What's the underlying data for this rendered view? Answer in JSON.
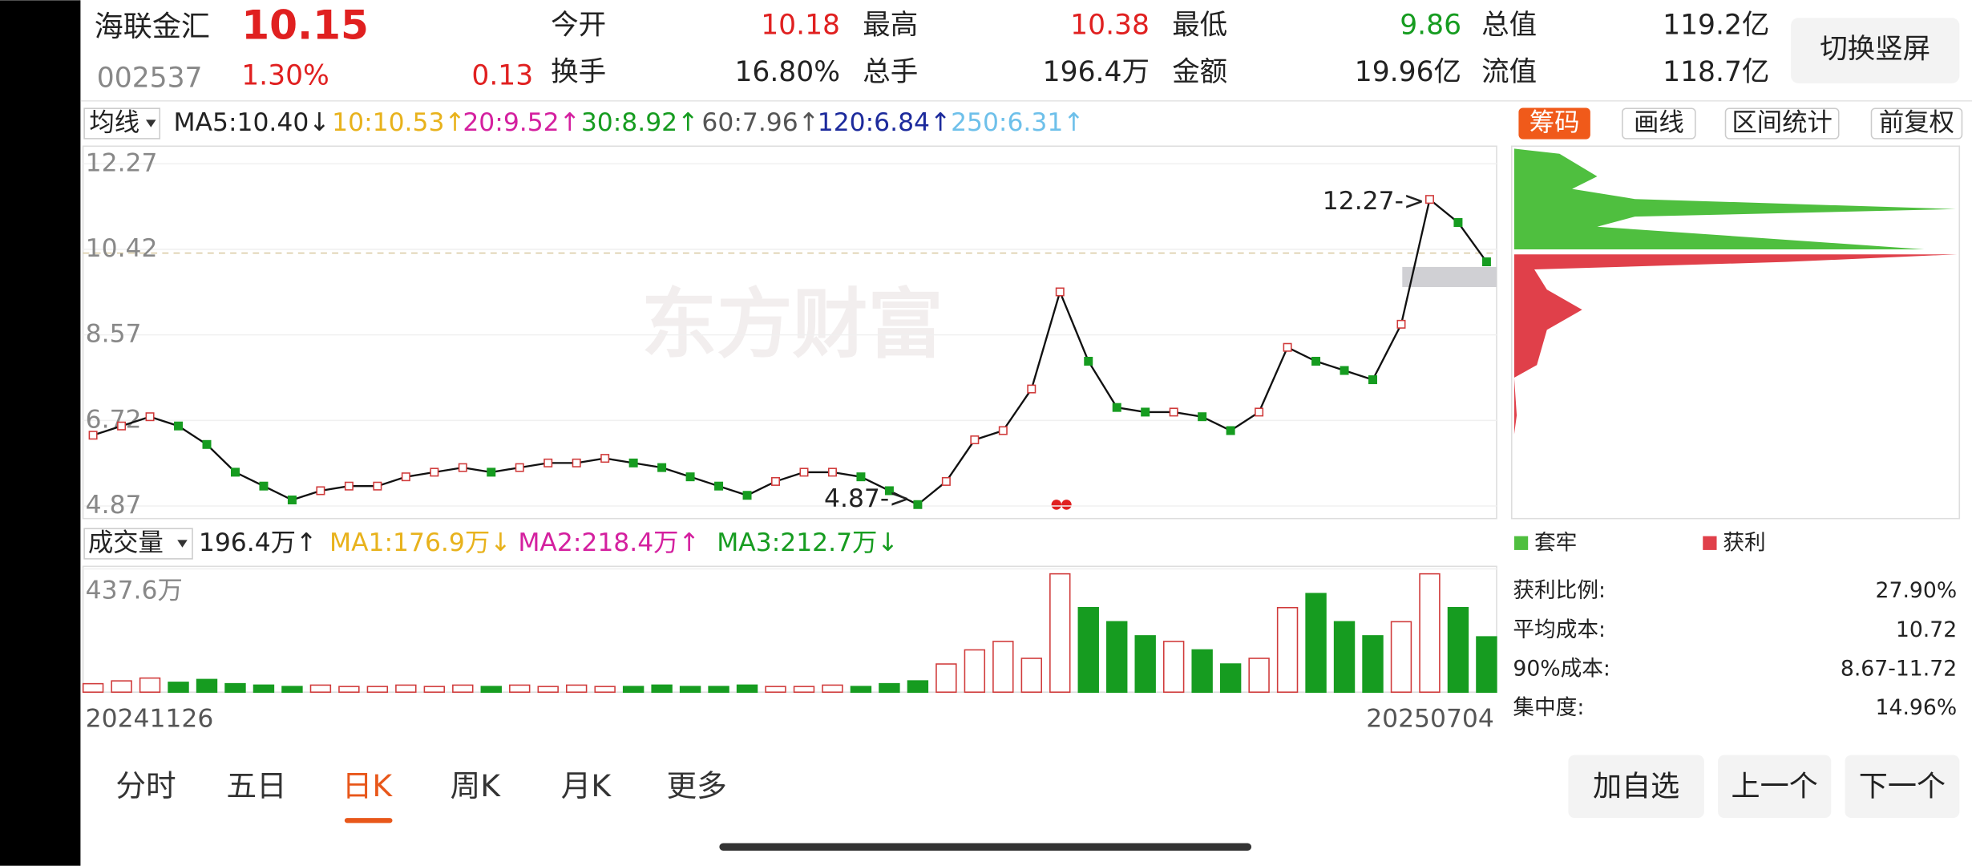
{
  "header": {
    "name": "海联金汇",
    "price": "10.15",
    "code": "002537",
    "change_pct": "1.30%",
    "change": "0.13",
    "fields": [
      [
        "今开",
        "10.18"
      ],
      [
        "最高",
        "10.38"
      ],
      [
        "最低",
        "9.86"
      ],
      [
        "总值",
        "119.2亿"
      ],
      [
        "换手",
        "16.80%"
      ],
      [
        "总手",
        "196.4万"
      ],
      [
        "金额",
        "19.96亿"
      ],
      [
        "流值",
        "118.7亿"
      ]
    ],
    "button": "切换竖屏"
  },
  "ma_row": {
    "selector": "均线",
    "items": [
      "MA5:10.40↓",
      "10:10.53↑",
      "20:9.52↑",
      "30:8.92↑",
      "60:7.96↑",
      "120:6.84↑",
      "250:6.31↑"
    ],
    "colors": [
      "#222222",
      "#e8b21c",
      "#d4209f",
      "#169c20",
      "#555555",
      "#1c2a9c",
      "#6ec0ea"
    ]
  },
  "side_tabs": [
    "筹码",
    "画线",
    "区间统计",
    "前复权"
  ],
  "watermark": "东方财富",
  "chart_data": [
    {
      "type": "line",
      "color": "#111111",
      "ylim": [
        4.87,
        12.27
      ],
      "yticks": [
        12.27,
        10.42,
        8.57,
        6.72,
        4.87
      ],
      "annotations": [
        "12.27->",
        "4.87->"
      ],
      "date_range": [
        "20241126",
        "20250704"
      ],
      "values": [
        6.4,
        6.6,
        6.8,
        6.6,
        6.2,
        5.6,
        5.3,
        5.0,
        5.2,
        5.3,
        5.3,
        5.5,
        5.6,
        5.7,
        5.6,
        5.7,
        5.8,
        5.8,
        5.9,
        5.8,
        5.7,
        5.5,
        5.3,
        5.1,
        5.4,
        5.6,
        5.6,
        5.5,
        5.2,
        4.9,
        5.4,
        6.3,
        6.5,
        7.4,
        9.5,
        8.0,
        7.0,
        6.9,
        6.9,
        6.8,
        6.5,
        6.9,
        8.3,
        8.0,
        7.8,
        7.6,
        8.8,
        11.5,
        11.0,
        10.15
      ]
    },
    {
      "type": "bar",
      "ylim": [
        0,
        437.6
      ],
      "yticks": [
        {
          "value": 437.6,
          "label": "437.6万"
        }
      ],
      "header": {
        "selector": "成交量",
        "items": [
          "196.4万↑",
          "MA1:176.9万↓",
          "MA2:218.4万↑",
          "MA3:212.7万↓"
        ],
        "colors": [
          "#222222",
          "#e8b21c",
          "#d4209f",
          "#169c20"
        ]
      },
      "values": [
        30,
        40,
        50,
        35,
        45,
        30,
        25,
        20,
        25,
        20,
        20,
        25,
        20,
        25,
        20,
        25,
        20,
        25,
        20,
        20,
        25,
        20,
        20,
        25,
        20,
        20,
        25,
        20,
        30,
        40,
        100,
        150,
        180,
        120,
        420,
        300,
        250,
        200,
        180,
        150,
        100,
        120,
        300,
        350,
        250,
        200,
        250,
        420,
        300,
        196.4
      ],
      "colors": [
        "#d03a3a",
        "#169c20"
      ]
    }
  ],
  "chips": {
    "legend": [
      "套牢",
      "获利"
    ],
    "stats": [
      [
        "获利比例:",
        "27.90%"
      ],
      [
        "平均成本:",
        "10.72"
      ],
      [
        "90%成本:",
        "8.67-11.72"
      ],
      [
        "集中度:",
        "14.96%"
      ]
    ]
  },
  "period_tabs": [
    "分时",
    "五日",
    "日K",
    "周K",
    "月K",
    "更多"
  ],
  "buttons": [
    "加自选",
    "上一个",
    "下一个"
  ]
}
